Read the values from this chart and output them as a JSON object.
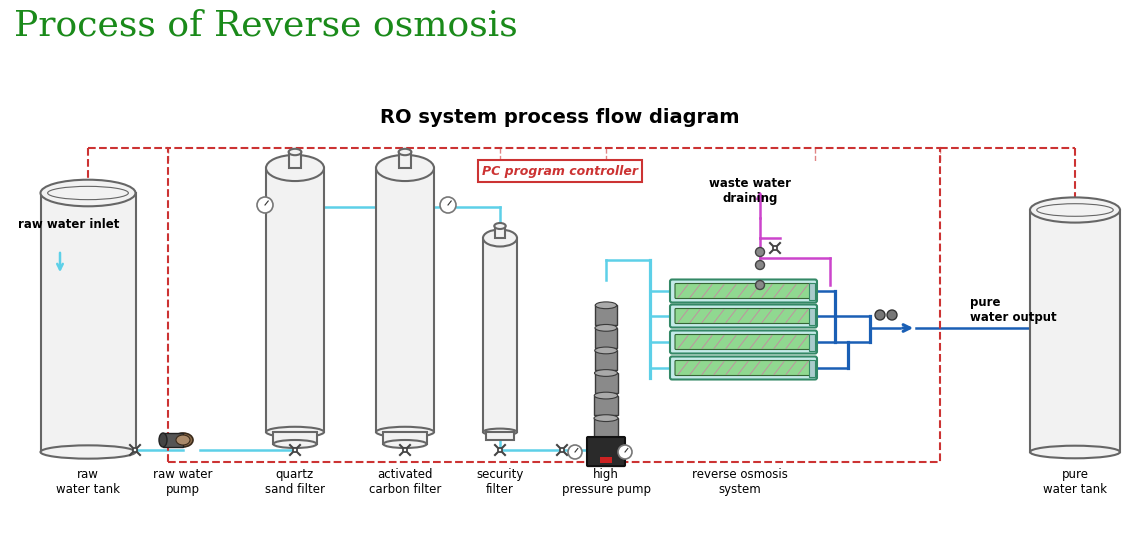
{
  "title_main": "Process of Reverse osmosis",
  "title_main_color": "#1a8a1a",
  "title_main_fontsize": 26,
  "subtitle": "RO system process flow diagram",
  "subtitle_fontsize": 14,
  "bg_color": "#ffffff",
  "labels": {
    "raw_water_inlet": "raw water inlet",
    "raw_water_tank": "raw\nwater tank",
    "raw_water_pump": "raw water\npump",
    "quartz_sand_filter": "quartz\nsand filter",
    "activated_carbon_filter": "activated\ncarbon filter",
    "security_filter": "security\nfilter",
    "high_pressure_pump": "high\npressure pump",
    "reverse_osmosis": "reverse osmosis\nsystem",
    "waste_water": "waste water\ndraining",
    "pure_water_output": "pure\nwater output",
    "pure_water_tank": "pure\nwater tank",
    "pc_controller": "PC program controller"
  },
  "colors": {
    "tank_fill": "#f2f2f2",
    "tank_outline": "#666666",
    "pipe_cyan": "#5dd0e8",
    "pipe_blue": "#1a5fb5",
    "pipe_magenta": "#cc44cc",
    "pipe_red_dashed": "#d44",
    "membrane_fill": "#c8f0ee",
    "membrane_green": "#8ed48e",
    "membrane_outline": "#449966",
    "valve_color": "#444444",
    "label_color": "#000000",
    "pc_box_color": "#cc3333",
    "arrow_blue": "#1a5fb5",
    "arrow_magenta": "#cc44cc",
    "pump_dark": "#3a3a3a",
    "pump_mid": "#888888"
  }
}
